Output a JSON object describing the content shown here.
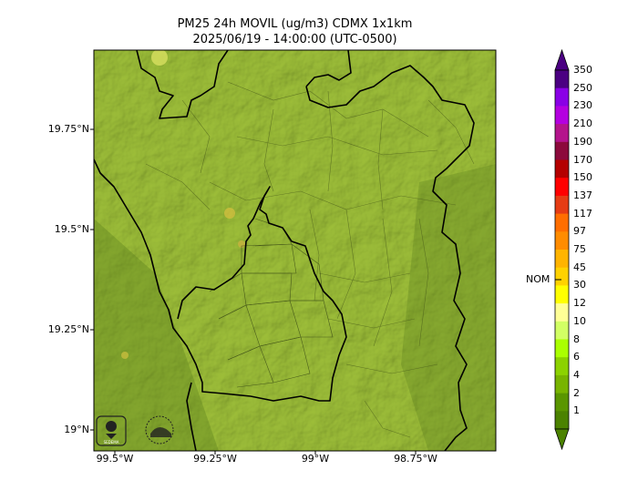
{
  "title": {
    "line1": "PM25 24h MOVIL (ug/m3) CDMX 1x1km",
    "line2": "2025/06/19 - 14:00:00 (UTC-0500)"
  },
  "map": {
    "lat_ticks": [
      "19.75°N",
      "19.5°N",
      "19.25°N",
      "19°N"
    ],
    "lon_ticks": [
      "99.5°W",
      "99.25°W",
      "99°W",
      "98.75°W"
    ],
    "logos": [
      "sedema-logo",
      "gobierno-cdmx-logo"
    ],
    "logo_text": "SEDEMA",
    "base_color": "#8aa832"
  },
  "colorbar": {
    "labels": [
      "350",
      "250",
      "230",
      "210",
      "190",
      "170",
      "150",
      "137",
      "117",
      "97",
      "75",
      "45",
      "30",
      "12",
      "10",
      "8",
      "6",
      "4",
      "2",
      "1"
    ],
    "colors": [
      "#4b0082",
      "#8a00e6",
      "#b400e0",
      "#b4148c",
      "#8c0a3c",
      "#b40000",
      "#ff0000",
      "#e63c14",
      "#ff6e00",
      "#ff8c00",
      "#ffb400",
      "#ffd200",
      "#ffff00",
      "#ffff96",
      "#d2ff64",
      "#aaff00",
      "#8cd200",
      "#78b400",
      "#5a9600",
      "#4b8200"
    ],
    "top_arrow": "#4b0082",
    "bottom_arrow": "#4b8200",
    "threshold_label": "NOM"
  }
}
